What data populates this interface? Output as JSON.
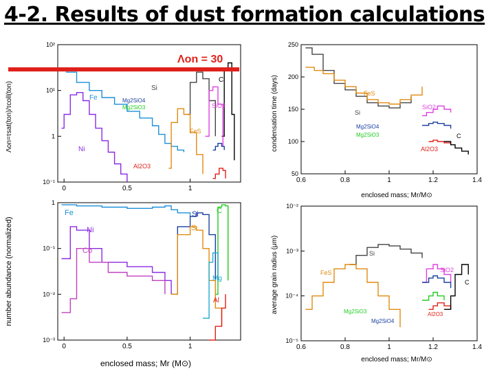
{
  "slide": {
    "title": "4-2. Results of dust formation calculations"
  },
  "banner": {
    "text": "Λon = 30",
    "color": "#e0201a"
  },
  "chart_data": [
    {
      "id": "lambda",
      "type": "line",
      "ylabel": "Λon=τsat(ton)/τcoll(ton)",
      "xlim": [
        -0.05,
        1.4
      ],
      "ylim": [
        0.1,
        100
      ],
      "yscale": "log",
      "xticks": [
        "0",
        "0.5",
        "1"
      ],
      "yticks": [
        "10⁻¹",
        "1",
        "10¹",
        "10²"
      ],
      "annotations": [
        "Fe",
        "Ni",
        "Si",
        "C",
        "Mg2SiO4",
        "Mg2SiO3",
        "SiO2",
        "FeS",
        "Al2O3"
      ],
      "series": [
        {
          "name": "Fe",
          "color": "#1c8fd8",
          "x": [
            -0.02,
            0.02,
            0.1,
            0.2,
            0.3,
            0.4,
            0.5,
            0.6,
            0.7,
            0.75,
            0.8,
            0.85,
            0.9,
            0.95
          ],
          "y": [
            30,
            25,
            15,
            10,
            7,
            5,
            3.5,
            2.5,
            1.7,
            1.1,
            0.7,
            0.6,
            0.5,
            0.45
          ]
        },
        {
          "name": "Ni",
          "color": "#8a2be2",
          "x": [
            -0.02,
            0.0,
            0.05,
            0.1,
            0.15,
            0.2,
            0.25,
            0.3,
            0.35,
            0.4,
            0.45,
            0.5
          ],
          "y": [
            1.5,
            3,
            8,
            9,
            6,
            3,
            1.5,
            0.8,
            0.45,
            0.25,
            0.15,
            0.1
          ]
        },
        {
          "name": "Si",
          "color": "#444444",
          "x": [
            0.98,
            1.0,
            1.05,
            1.1,
            1.15,
            1.2
          ],
          "y": [
            3,
            15,
            25,
            18,
            6,
            1
          ]
        },
        {
          "name": "C",
          "color": "#000000",
          "x": [
            1.25,
            1.27,
            1.3,
            1.33,
            1.35
          ],
          "y": [
            1,
            30,
            40,
            3,
            0.3
          ]
        },
        {
          "name": "SiO2",
          "color": "#e040e0",
          "x": [
            1.12,
            1.15,
            1.18,
            1.22,
            1.26
          ],
          "y": [
            1,
            10,
            12,
            5,
            0.6
          ]
        },
        {
          "name": "FeS",
          "color": "#e08a10",
          "x": [
            0.83,
            0.85,
            0.9,
            0.95,
            1.0,
            1.05,
            1.1
          ],
          "y": [
            0.2,
            2,
            4,
            3,
            1.2,
            0.4,
            0.15
          ]
        },
        {
          "name": "Mg2SiO4",
          "color": "#1a3fa0",
          "x": [
            1.18,
            1.2,
            1.22,
            1.25,
            1.27
          ],
          "y": [
            0.5,
            0.6,
            0.7,
            0.6,
            0.5
          ]
        },
        {
          "name": "Al2O3",
          "color": "#e0201a",
          "x": [
            1.18,
            1.2,
            1.23,
            1.26,
            1.28
          ],
          "y": [
            0.12,
            0.15,
            0.2,
            0.18,
            0.12
          ]
        }
      ]
    },
    {
      "id": "abundance",
      "type": "line",
      "xlabel": "enclosed mass; Mr (M⊙)",
      "ylabel": "number abundance (normalized)",
      "xlim": [
        -0.05,
        1.4
      ],
      "ylim": [
        0.001,
        1
      ],
      "yscale": "log",
      "xticks": [
        "0",
        "0.5",
        "1"
      ],
      "yticks": [
        "10⁻³",
        "10⁻²",
        "10⁻¹",
        "1"
      ],
      "annotations": [
        "Fe",
        "Ni",
        "Co",
        "Si",
        "S",
        "C",
        "Mg",
        "Al"
      ],
      "series": [
        {
          "name": "Fe",
          "color": "#1c8fd8",
          "x": [
            -0.02,
            0.1,
            0.3,
            0.5,
            0.7,
            0.8,
            0.85,
            0.9,
            1.0
          ],
          "y": [
            0.9,
            0.85,
            0.8,
            0.75,
            0.8,
            0.85,
            0.7,
            0.6,
            0.5
          ]
        },
        {
          "name": "Ni",
          "color": "#8a2be2",
          "x": [
            -0.02,
            0.05,
            0.1,
            0.2,
            0.3,
            0.5,
            0.7,
            0.8,
            0.85
          ],
          "y": [
            0.06,
            0.3,
            0.25,
            0.1,
            0.05,
            0.04,
            0.03,
            0.02,
            0.01
          ]
        },
        {
          "name": "Co",
          "color": "#c040c0",
          "x": [
            -0.02,
            0.05,
            0.1,
            0.2,
            0.35,
            0.5,
            0.7,
            0.8
          ],
          "y": [
            0.004,
            0.008,
            0.1,
            0.05,
            0.03,
            0.025,
            0.02,
            0.01
          ]
        },
        {
          "name": "Si",
          "color": "#1a3fa0",
          "x": [
            0.85,
            0.9,
            1.0,
            1.05,
            1.1,
            1.15,
            1.2
          ],
          "y": [
            0.01,
            0.3,
            0.5,
            0.6,
            0.55,
            0.2,
            0.02
          ]
        },
        {
          "name": "S",
          "color": "#e08a10",
          "x": [
            0.85,
            0.9,
            1.0,
            1.05,
            1.1,
            1.15,
            1.2,
            1.25
          ],
          "y": [
            0.01,
            0.2,
            0.3,
            0.25,
            0.1,
            0.02,
            0.005,
            0.002
          ]
        },
        {
          "name": "C",
          "color": "#22cc22",
          "x": [
            1.2,
            1.22,
            1.25,
            1.28,
            1.3
          ],
          "y": [
            0.01,
            0.8,
            0.9,
            0.85,
            0.02
          ]
        },
        {
          "name": "Mg",
          "color": "#22aacc",
          "x": [
            1.1,
            1.15,
            1.18,
            1.22
          ],
          "y": [
            0.003,
            0.05,
            0.08,
            0.02
          ]
        },
        {
          "name": "Al",
          "color": "#e0201a",
          "x": [
            1.15,
            1.2,
            1.25,
            1.28
          ],
          "y": [
            0.001,
            0.002,
            0.005,
            0.01
          ]
        }
      ]
    },
    {
      "id": "time",
      "type": "line",
      "xlabel": "enclosed mass; Mr/M⊙",
      "ylabel": "condensation time (days)",
      "xlim": [
        0.6,
        1.4
      ],
      "ylim": [
        50,
        250
      ],
      "xticks": [
        "0.6",
        "0.8",
        "1",
        "1.2",
        "1.4"
      ],
      "yticks": [
        "50",
        "100",
        "150",
        "200",
        "250"
      ],
      "annotations": [
        "Si",
        "FeS",
        "SiO2",
        "Mg2SiO4",
        "Mg2SiO3",
        "Al2O3",
        "C"
      ],
      "series": [
        {
          "name": "Si",
          "color": "#444444",
          "x": [
            0.62,
            0.65,
            0.7,
            0.75,
            0.8,
            0.85,
            0.9,
            0.95,
            1.0,
            1.05,
            1.1
          ],
          "y": [
            245,
            235,
            210,
            190,
            180,
            170,
            160,
            155,
            152,
            160,
            170
          ]
        },
        {
          "name": "FeS",
          "color": "#e08a10",
          "x": [
            0.62,
            0.66,
            0.7,
            0.75,
            0.8,
            0.85,
            0.9,
            0.95,
            1.0,
            1.05,
            1.1,
            1.15
          ],
          "y": [
            215,
            210,
            205,
            195,
            185,
            175,
            165,
            160,
            158,
            165,
            172,
            185
          ]
        },
        {
          "name": "SiO2",
          "color": "#e040e0",
          "x": [
            1.15,
            1.17,
            1.2,
            1.22,
            1.25,
            1.28
          ],
          "y": [
            140,
            145,
            150,
            155,
            150,
            145
          ]
        },
        {
          "name": "Mg2SiO4",
          "color": "#1a3fa0",
          "x": [
            1.15,
            1.18,
            1.2,
            1.22,
            1.25,
            1.28
          ],
          "y": [
            125,
            128,
            130,
            128,
            125,
            120
          ]
        },
        {
          "name": "Al2O3",
          "color": "#e0201a",
          "x": [
            1.18,
            1.2,
            1.22,
            1.25,
            1.28
          ],
          "y": [
            100,
            102,
            100,
            98,
            95
          ]
        },
        {
          "name": "C",
          "color": "#000000",
          "x": [
            1.25,
            1.28,
            1.3,
            1.33,
            1.36
          ],
          "y": [
            100,
            95,
            90,
            85,
            80
          ]
        }
      ]
    },
    {
      "id": "radius",
      "type": "line",
      "xlabel": "enclosed mass; Mr/M⊙",
      "ylabel": "average grain radius (μm)",
      "xlim": [
        0.6,
        1.4
      ],
      "ylim": [
        1e-05,
        0.01
      ],
      "yscale": "log",
      "xticks": [
        "0.6",
        "0.8",
        "1",
        "1.2",
        "1.4"
      ],
      "yticks": [
        "10⁻⁵",
        "10⁻⁴",
        "10⁻³",
        "10⁻²"
      ],
      "annotations": [
        "Si",
        "FeS",
        "SiO2",
        "C",
        "Mg2SiO3",
        "Mg2SiO4",
        "Al2O3"
      ],
      "series": [
        {
          "name": "Si",
          "color": "#444444",
          "x": [
            0.82,
            0.85,
            0.9,
            0.95,
            1.0,
            1.05,
            1.1,
            1.15
          ],
          "y": [
            0.0005,
            0.0008,
            0.0012,
            0.0014,
            0.0013,
            0.0011,
            0.0009,
            0.0007
          ]
        },
        {
          "name": "FeS",
          "color": "#e08a10",
          "x": [
            0.62,
            0.65,
            0.7,
            0.75,
            0.8,
            0.85,
            0.9,
            0.95,
            1.0,
            1.05
          ],
          "y": [
            5e-05,
            0.0001,
            0.0002,
            0.0004,
            0.0005,
            0.0004,
            0.0002,
            0.0001,
            5e-05,
            2e-05
          ]
        },
        {
          "name": "SiO2",
          "color": "#e040e0",
          "x": [
            1.15,
            1.17,
            1.2,
            1.22,
            1.25,
            1.28
          ],
          "y": [
            0.0002,
            0.0004,
            0.0005,
            0.0004,
            0.0003,
            0.0002
          ]
        },
        {
          "name": "Mg2SiO4",
          "color": "#1a3fa0",
          "x": [
            1.15,
            1.18,
            1.2,
            1.22,
            1.25,
            1.28
          ],
          "y": [
            0.0002,
            0.00025,
            0.00028,
            0.00025,
            0.0002,
            0.00015
          ]
        },
        {
          "name": "Mg2SiO3",
          "color": "#22cc22",
          "x": [
            1.15,
            1.18,
            1.2,
            1.22,
            1.25
          ],
          "y": [
            8e-05,
            0.0001,
            0.00012,
            0.0001,
            8e-05
          ]
        },
        {
          "name": "Al2O3",
          "color": "#e0201a",
          "x": [
            1.18,
            1.2,
            1.22,
            1.25,
            1.28
          ],
          "y": [
            5e-05,
            6e-05,
            7e-05,
            6e-05,
            5e-05
          ]
        },
        {
          "name": "C",
          "color": "#000000",
          "x": [
            1.25,
            1.28,
            1.3,
            1.33,
            1.36
          ],
          "y": [
            5e-05,
            0.0001,
            0.0003,
            0.0005,
            0.0003
          ]
        }
      ]
    }
  ]
}
